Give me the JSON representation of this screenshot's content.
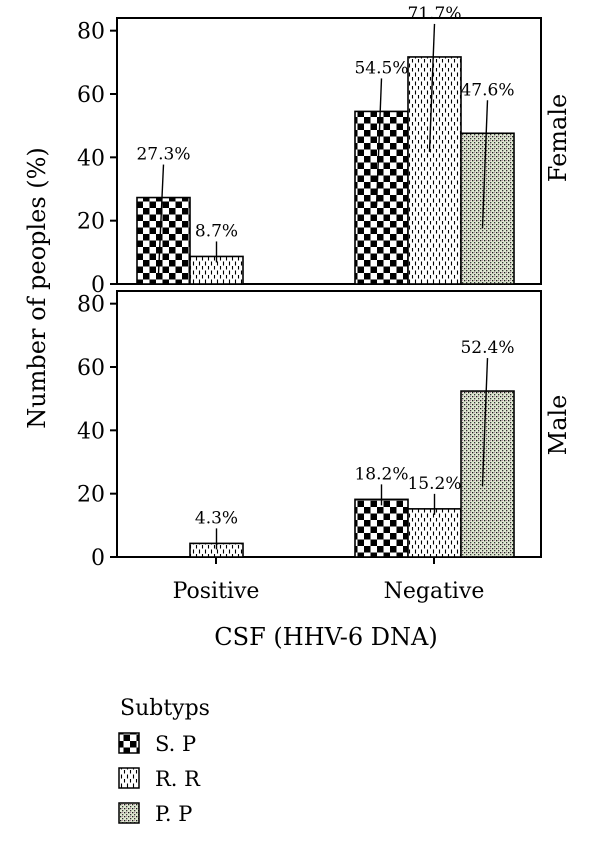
{
  "chart_data": {
    "type": "bar",
    "xlabel": "CSF (HHV-6 DNA)",
    "ylabel": "Number of peoples (%)",
    "categories": [
      "Positive",
      "Negative"
    ],
    "ylim": [
      0,
      84
    ],
    "yticks": [
      0,
      20,
      40,
      60,
      80
    ],
    "panels": [
      {
        "name": "Female",
        "series": [
          {
            "name": "S. P",
            "values": [
              27.3,
              54.5
            ],
            "labels": [
              "27.3%",
              "54.5%"
            ]
          },
          {
            "name": "R. R",
            "values": [
              8.7,
              71.7
            ],
            "labels": [
              "8.7%",
              "71.7%"
            ]
          },
          {
            "name": "P. P",
            "values": [
              null,
              47.6
            ],
            "labels": [
              "",
              "47.6%"
            ]
          }
        ]
      },
      {
        "name": "Male",
        "series": [
          {
            "name": "S. P",
            "values": [
              null,
              18.2
            ],
            "labels": [
              "",
              "18.2%"
            ]
          },
          {
            "name": "R. R",
            "values": [
              4.3,
              15.2
            ],
            "labels": [
              "4.3%",
              "15.2%"
            ]
          },
          {
            "name": "P. P",
            "values": [
              null,
              52.4
            ],
            "labels": [
              "",
              "52.4%"
            ]
          }
        ]
      }
    ],
    "legend": {
      "title": "Subtyps",
      "position": "bottom-left",
      "items": [
        {
          "label": "S. P",
          "pattern": "checker"
        },
        {
          "label": "R. R",
          "pattern": "dashes"
        },
        {
          "label": "P. P",
          "pattern": "dots"
        }
      ]
    },
    "colors": {
      "frame": "#000000",
      "background": "#ffffff",
      "pp_tint": "#c8e6b4",
      "pp_tint2": "#e6b4d2"
    }
  }
}
